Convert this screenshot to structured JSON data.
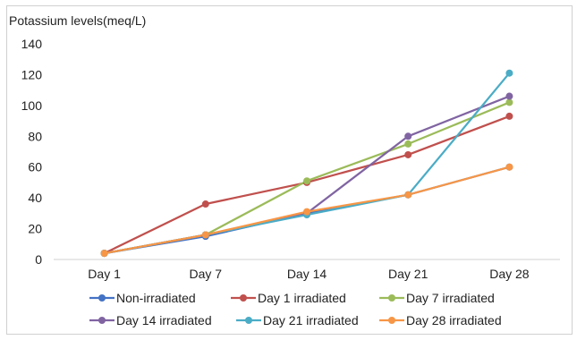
{
  "chart_data": {
    "type": "line",
    "title": "",
    "ylabel": "Potassium levels(meq/L)",
    "xlabel": "",
    "categories": [
      "Day 1",
      "Day 7",
      "Day 14",
      "Day 21",
      "Day 28"
    ],
    "ylim": [
      0,
      140
    ],
    "yticks": [
      0,
      20,
      40,
      60,
      80,
      100,
      120,
      140
    ],
    "grid": false,
    "legend_position": "bottom",
    "series": [
      {
        "name": "Non-irradiated",
        "color": "#4472c4",
        "values": [
          4,
          15,
          30,
          42,
          60
        ]
      },
      {
        "name": "Day 1 irradiated",
        "color": "#c0504d",
        "values": [
          4,
          36,
          50,
          68,
          93
        ]
      },
      {
        "name": "Day 7 irradiated",
        "color": "#9bbb59",
        "values": [
          4,
          16,
          51,
          75,
          102
        ]
      },
      {
        "name": "Day 14 irradiated",
        "color": "#8064a2",
        "values": [
          4,
          16,
          30,
          80,
          106
        ]
      },
      {
        "name": "Day 21 irradiated",
        "color": "#4bacc6",
        "values": [
          4,
          16,
          29,
          42,
          121
        ]
      },
      {
        "name": "Day 28 irradiated",
        "color": "#f79646",
        "values": [
          4,
          16,
          31,
          42,
          60
        ]
      }
    ]
  }
}
